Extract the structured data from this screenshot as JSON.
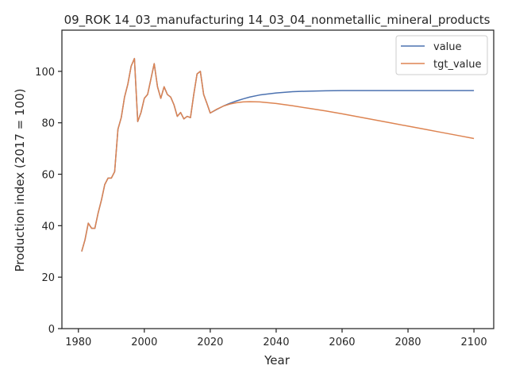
{
  "chart_data": {
    "type": "line",
    "title": "09_ROK 14_03_manufacturing 14_03_04_nonmetallic_mineral_products",
    "xlabel": "Year",
    "ylabel": "Production index (2017 = 100)",
    "xlim": [
      1975,
      2106
    ],
    "ylim": [
      0,
      116
    ],
    "xticks": [
      1980,
      2000,
      2020,
      2040,
      2060,
      2080,
      2100
    ],
    "yticks": [
      0,
      20,
      40,
      60,
      80,
      100
    ],
    "legend": {
      "placement": "top-right"
    },
    "grid": false,
    "series": [
      {
        "name": "value",
        "color": "#4c72b0",
        "x": [
          1981,
          1982,
          1983,
          1984,
          1985,
          1986,
          1987,
          1988,
          1989,
          1990,
          1991,
          1992,
          1993,
          1994,
          1995,
          1996,
          1997,
          1998,
          1999,
          2000,
          2001,
          2002,
          2003,
          2004,
          2005,
          2006,
          2007,
          2008,
          2009,
          2010,
          2011,
          2012,
          2013,
          2014,
          2015,
          2016,
          2017,
          2018,
          2019,
          2020,
          2022,
          2024,
          2026,
          2028,
          2030,
          2032,
          2035,
          2040,
          2045,
          2050,
          2055,
          2060,
          2065,
          2070,
          2075,
          2080,
          2085,
          2090,
          2095,
          2100
        ],
        "y": [
          30,
          34.5,
          41,
          39,
          39,
          45,
          50,
          56,
          58.5,
          58.5,
          61,
          77.5,
          82,
          90,
          95,
          102,
          105,
          80.5,
          84,
          89.5,
          91,
          97,
          103,
          94,
          89.5,
          94,
          91,
          90,
          87,
          82.5,
          84,
          81.5,
          82.5,
          82,
          91,
          99,
          100,
          91,
          87.5,
          83.8,
          85.2,
          86.5,
          87.6,
          88.5,
          89.3,
          90,
          90.8,
          91.6,
          92.1,
          92.3,
          92.45,
          92.5,
          92.5,
          92.5,
          92.5,
          92.5,
          92.5,
          92.5,
          92.5,
          92.5
        ]
      },
      {
        "name": "tgt_value",
        "color": "#dd8452",
        "x": [
          1981,
          1982,
          1983,
          1984,
          1985,
          1986,
          1987,
          1988,
          1989,
          1990,
          1991,
          1992,
          1993,
          1994,
          1995,
          1996,
          1997,
          1998,
          1999,
          2000,
          2001,
          2002,
          2003,
          2004,
          2005,
          2006,
          2007,
          2008,
          2009,
          2010,
          2011,
          2012,
          2013,
          2014,
          2015,
          2016,
          2017,
          2018,
          2019,
          2020,
          2022,
          2024,
          2026,
          2028,
          2030,
          2032,
          2035,
          2040,
          2045,
          2050,
          2055,
          2060,
          2065,
          2070,
          2075,
          2080,
          2085,
          2090,
          2095,
          2100
        ],
        "y": [
          30,
          34.5,
          41,
          39,
          39,
          45,
          50,
          56,
          58.5,
          58.5,
          61,
          77.5,
          82,
          90,
          95,
          102,
          105,
          80.5,
          84,
          89.5,
          91,
          97,
          103,
          94,
          89.5,
          94,
          91,
          90,
          87,
          82.5,
          84,
          81.5,
          82.5,
          82,
          91,
          99,
          100,
          91,
          87.5,
          83.8,
          85.3,
          86.5,
          87.3,
          87.8,
          88.1,
          88.2,
          88.1,
          87.5,
          86.6,
          85.6,
          84.6,
          83.5,
          82.3,
          81.1,
          79.9,
          78.7,
          77.5,
          76.3,
          75.1,
          73.9
        ]
      }
    ]
  }
}
